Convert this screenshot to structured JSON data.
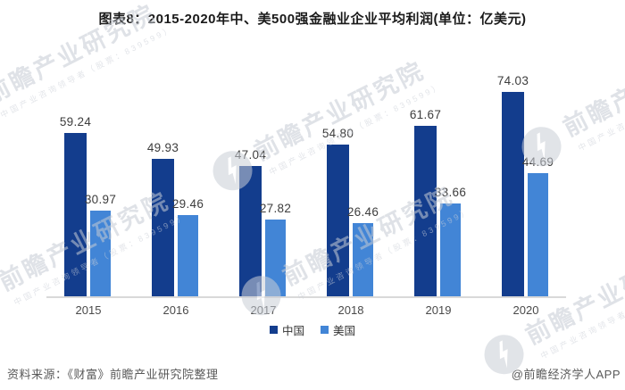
{
  "title": "图表8：2015-2020年中、美500强金融业企业平均利润(单位：亿美元)",
  "chart_data": {
    "type": "bar",
    "title": "图表8：2015-2020年中、美500强金融业企业平均利润(单位：亿美元)",
    "unit": "亿美元",
    "categories": [
      "2015",
      "2016",
      "2017",
      "2018",
      "2019",
      "2020"
    ],
    "series": [
      {
        "key": "china",
        "name": "中国",
        "color": "#133d8d",
        "values": [
          59.24,
          49.93,
          47.04,
          54.8,
          61.67,
          74.03
        ]
      },
      {
        "key": "usa",
        "name": "美国",
        "color": "#4285d6",
        "values": [
          30.97,
          29.46,
          27.82,
          26.46,
          33.66,
          44.69
        ]
      }
    ],
    "ylim": [
      0,
      80
    ],
    "grid": false,
    "y_axis_visible": false,
    "axis_line_color": "#d9d9d9",
    "legend_position": "bottom",
    "value_labels": true,
    "value_label_decimals": 2
  },
  "footer": {
    "source": "资料来源：《财富》前瞻产业研究院整理",
    "credit": "@前瞻经济学人APP"
  },
  "watermark": {
    "brand": "前瞻产业研究院",
    "tagline": "中国产业咨询领导者（股票：839599）"
  }
}
